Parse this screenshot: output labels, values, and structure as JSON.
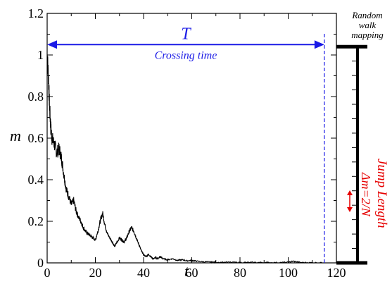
{
  "chart_data": {
    "type": "line",
    "xlabel": "t",
    "ylabel": "m",
    "xlim": [
      0,
      120
    ],
    "ylim": [
      0,
      1.2
    ],
    "x_ticks": [
      "0",
      "20",
      "40",
      "60",
      "80",
      "100",
      "120"
    ],
    "y_ticks": [
      "0",
      "0.2",
      "0.4",
      "0.6",
      "0.8",
      "1",
      "1.2"
    ],
    "x_tick_values": [
      0,
      20,
      40,
      60,
      80,
      100,
      120
    ],
    "y_tick_values": [
      0,
      0.2,
      0.4,
      0.6,
      0.8,
      1.0,
      1.2
    ],
    "series": [
      {
        "color": "#000000",
        "x": [
          0,
          0.5,
          1,
          1.5,
          2,
          3,
          4,
          5,
          6,
          7,
          8,
          9,
          10,
          11,
          12,
          13,
          14,
          15,
          16,
          17,
          18,
          19,
          20,
          21,
          22,
          23,
          24,
          25,
          26,
          27,
          28,
          29,
          30,
          31,
          32,
          33,
          34,
          35,
          36,
          37,
          38,
          39,
          40,
          41,
          42,
          43,
          44,
          45,
          46,
          47,
          48,
          50,
          52,
          54,
          56,
          58,
          60,
          62,
          65,
          68,
          70,
          75,
          80,
          85,
          90,
          95,
          100,
          102,
          105,
          110,
          115
        ],
        "y": [
          1.0,
          0.9,
          0.75,
          0.65,
          0.6,
          0.57,
          0.53,
          0.55,
          0.5,
          0.42,
          0.35,
          0.32,
          0.28,
          0.3,
          0.25,
          0.22,
          0.2,
          0.17,
          0.15,
          0.14,
          0.13,
          0.12,
          0.11,
          0.15,
          0.2,
          0.24,
          0.18,
          0.14,
          0.12,
          0.1,
          0.08,
          0.1,
          0.12,
          0.11,
          0.1,
          0.12,
          0.15,
          0.17,
          0.15,
          0.12,
          0.09,
          0.06,
          0.04,
          0.03,
          0.04,
          0.03,
          0.02,
          0.025,
          0.02,
          0.03,
          0.02,
          0.015,
          0.02,
          0.012,
          0.015,
          0.01,
          0.012,
          0.008,
          0.005,
          0.004,
          0.003,
          0.003,
          0.002,
          0.002,
          0.002,
          0.001,
          0.003,
          0.008,
          0.002,
          0.001,
          0.0
        ]
      }
    ],
    "annotations": {
      "T_label": "T",
      "crossing_label": "Crossing time",
      "crossing_t": 115,
      "arrow_level": 1.05
    },
    "side_panel": {
      "title_lines": [
        "Random",
        "walk",
        "mapping"
      ],
      "jump_length_label": "Jump Length",
      "delta_label": "Δm=2/N",
      "bar_top": 1.04,
      "bar_bottom": 0,
      "notches": 15
    }
  }
}
